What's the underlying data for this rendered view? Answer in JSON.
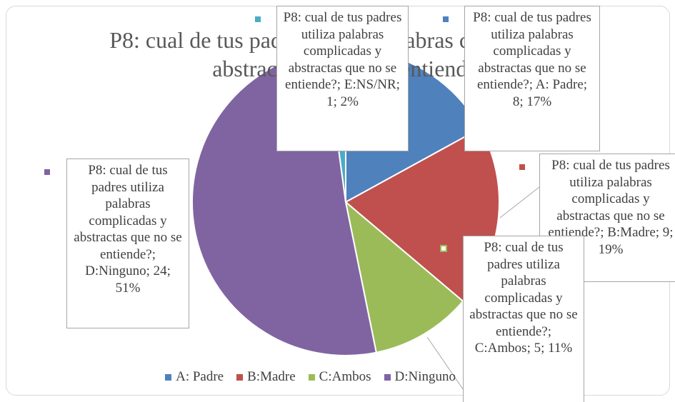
{
  "chart_data": {
    "type": "pie",
    "title": "P8: cual de tus padres utiliza palabras complicadas y abstractas que no se entiende?",
    "categories": [
      "A: Padre",
      "B:Madre",
      "C:Ambos",
      "D:Ninguno",
      "E:NS/NR"
    ],
    "values": [
      8,
      9,
      5,
      24,
      1
    ],
    "value_labels": [
      "P8: cual de tus padres utiliza palabras complicadas y abstractas que no se entiende?; A: Padre; 8; 17%",
      "P8: cual de tus padres utiliza palabras complicadas y abstractas que no se entiende?; B:Madre; 9; 19%",
      "P8: cual de tus padres utiliza palabras complicadas y abstractas que no se entiende?; C:Ambos; 5; 11%",
      "P8: cual de tus padres utiliza palabras complicadas y abstractas que no se entiende?; D:Ninguno; 24; 51%",
      "P8: cual de tus padres utiliza palabras complicadas y abstractas que no se entiende?; E:NS/NR; 1; 2%"
    ],
    "colors": [
      "#4f81bd",
      "#c0504d",
      "#9bbb59",
      "#8064a2",
      "#4bacc6"
    ],
    "legend": "bottom"
  }
}
